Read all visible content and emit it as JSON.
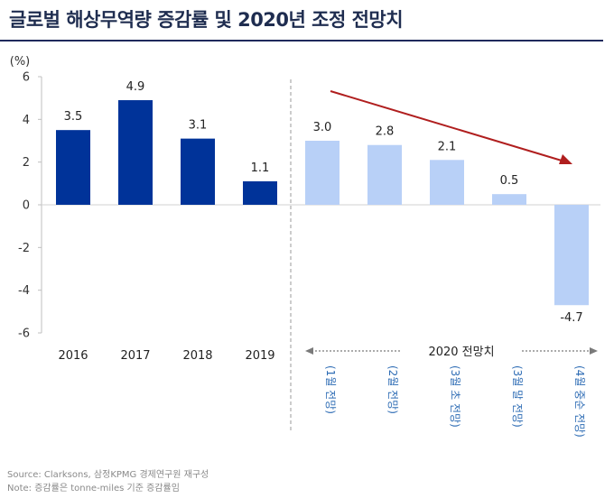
{
  "title": "글로벌 해상무역량 증감률 및 2020년 조정 전망치",
  "source_line": "Source: Clarksons, 삼정KPMG 경제연구원 재구성",
  "note_line": "Note: 증감률은 tonne-miles 기준 증감률임",
  "colors": {
    "actual": "#003399",
    "forecast": "#b8d0f7",
    "trend_arrow": "#b01e1e",
    "title_rule": "#1f2a5c",
    "forecast_label": "#2f6db5"
  },
  "chart_data": {
    "type": "bar",
    "ylabel": "(%)",
    "ylim": [
      -6,
      6
    ],
    "yticks": [
      -6,
      -4,
      -2,
      0,
      2,
      4,
      6
    ],
    "grid": false,
    "series": [
      {
        "group": "actual",
        "categories": [
          "2016",
          "2017",
          "2018",
          "2019"
        ],
        "values": [
          3.5,
          4.9,
          3.1,
          1.1
        ],
        "labels": [
          "3.5",
          "4.9",
          "3.1",
          "1.1"
        ]
      },
      {
        "group": "forecast",
        "group_label": "2020 전망치",
        "categories": [
          "(1월 전망)",
          "(2월 전망)",
          "(3월 초 전망)",
          "(3월 말 전망)",
          "(4월 중순 전망)"
        ],
        "values": [
          3.0,
          2.8,
          2.1,
          0.5,
          -4.7
        ],
        "labels": [
          "3.0",
          "2.8",
          "2.1",
          "0.5",
          "-4.7"
        ]
      }
    ],
    "annotation": "downward trend arrow over forecast bars"
  }
}
